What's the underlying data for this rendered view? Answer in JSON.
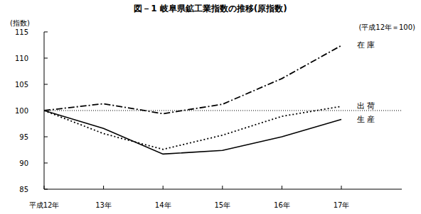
{
  "chart_data": {
    "type": "line",
    "title": "図－1 岐阜県鉱工業指数の推移(原指数)",
    "subtitle": "(平成12年＝100)",
    "y_label": "(指数)",
    "categories": [
      "平成12年",
      "13年",
      "14年",
      "15年",
      "16年",
      "17年"
    ],
    "series": [
      {
        "name": "在 庫",
        "color": "#000000",
        "line_style": "dashdot",
        "values": [
          100,
          101.3,
          99.4,
          101.2,
          106.1,
          112.4
        ]
      },
      {
        "name": "出 荷",
        "color": "#000000",
        "line_style": "dotted",
        "values": [
          100,
          95.6,
          92.6,
          95.3,
          98.9,
          100.8
        ]
      },
      {
        "name": "生 産",
        "color": "#000000",
        "line_style": "solid",
        "values": [
          100,
          96.6,
          91.7,
          92.4,
          95.0,
          98.3
        ]
      }
    ],
    "reference_line": 100,
    "ylim": [
      85,
      115
    ],
    "yticks": [
      85,
      90,
      95,
      100,
      105,
      110,
      115
    ],
    "grid": false
  }
}
